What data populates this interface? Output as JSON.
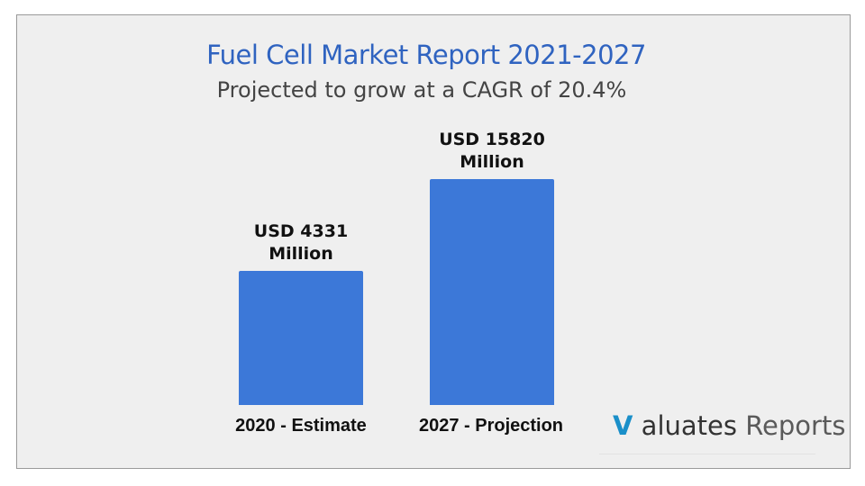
{
  "chart_data": {
    "type": "bar",
    "title": "Fuel Cell Market Report 2021-2027",
    "subtitle": "Projected to grow at a CAGR of 20.4%",
    "categories": [
      "2020 - Estimate",
      "2027 - Projection"
    ],
    "values": [
      4331,
      15820
    ],
    "data_labels": [
      [
        "USD 4331",
        "Million"
      ],
      [
        "USD 15820",
        "Million"
      ]
    ],
    "bar_color": "#3c78d8",
    "grid": false
  },
  "logo": {
    "mark": "V",
    "text1": "aluates",
    "text2": "Reports"
  }
}
